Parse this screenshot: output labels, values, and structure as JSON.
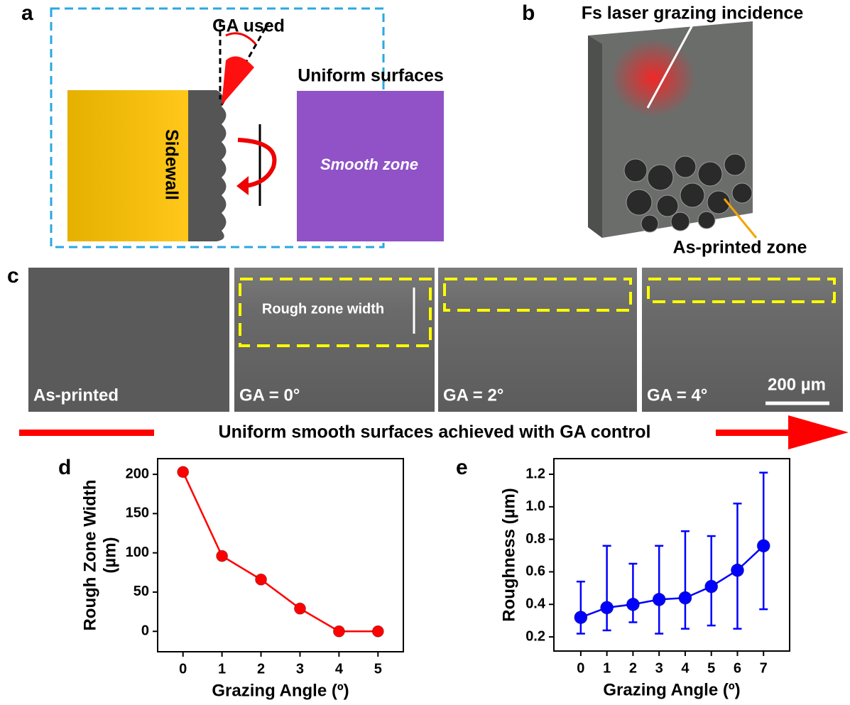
{
  "panels": {
    "a": {
      "label": "a",
      "ga_used": "GA used",
      "uniform": "Uniform surfaces",
      "sidewall": "Sidewall",
      "smooth": "Smooth zone"
    },
    "b": {
      "label": "b",
      "title": "Fs laser grazing incidence",
      "zone": "As-printed zone"
    },
    "c": {
      "label": "c",
      "rough": "Rough zone width",
      "images": [
        "As-printed",
        "GA = 0°",
        "GA = 2°",
        "GA = 4°"
      ],
      "scale": "200 µm",
      "banner": "Uniform smooth surfaces achieved with GA control"
    },
    "d": {
      "label": "d"
    },
    "e": {
      "label": "e"
    }
  },
  "chart_data": [
    {
      "type": "line",
      "x_label": "Grazing Angle (º)",
      "y_label": [
        "Rough Zone Width",
        "(µm)"
      ],
      "color": "#ff0000",
      "x": [
        0,
        1,
        2,
        3,
        4,
        5
      ],
      "values": [
        203,
        96,
        66,
        29,
        0,
        0
      ],
      "xlim": [
        -0.65,
        5.65
      ],
      "ylim": [
        -26,
        220
      ],
      "xticks": [
        0,
        1,
        2,
        3,
        4,
        5
      ],
      "yticks": [
        0,
        50,
        100,
        150,
        200
      ]
    },
    {
      "type": "errorline",
      "x_label": "Grazing Angle (º)",
      "y_label": [
        "Roughness (µm)"
      ],
      "color": "#0000ff",
      "x": [
        0,
        1,
        2,
        3,
        4,
        5,
        6,
        7
      ],
      "values": [
        0.32,
        0.38,
        0.4,
        0.43,
        0.44,
        0.51,
        0.61,
        0.76
      ],
      "lower": [
        0.22,
        0.24,
        0.29,
        0.22,
        0.25,
        0.27,
        0.25,
        0.37
      ],
      "upper": [
        0.54,
        0.76,
        0.65,
        0.76,
        0.85,
        0.82,
        1.02,
        1.21
      ],
      "xlim": [
        -1.03,
        8.0
      ],
      "ylim": [
        0.113,
        1.296
      ],
      "xticks": [
        0,
        1,
        2,
        3,
        4,
        5,
        6,
        7
      ],
      "yticks": [
        0.2,
        0.4,
        0.6,
        0.8,
        {
          "value": 1,
          "label": "1.0"
        },
        1.2
      ]
    }
  ]
}
